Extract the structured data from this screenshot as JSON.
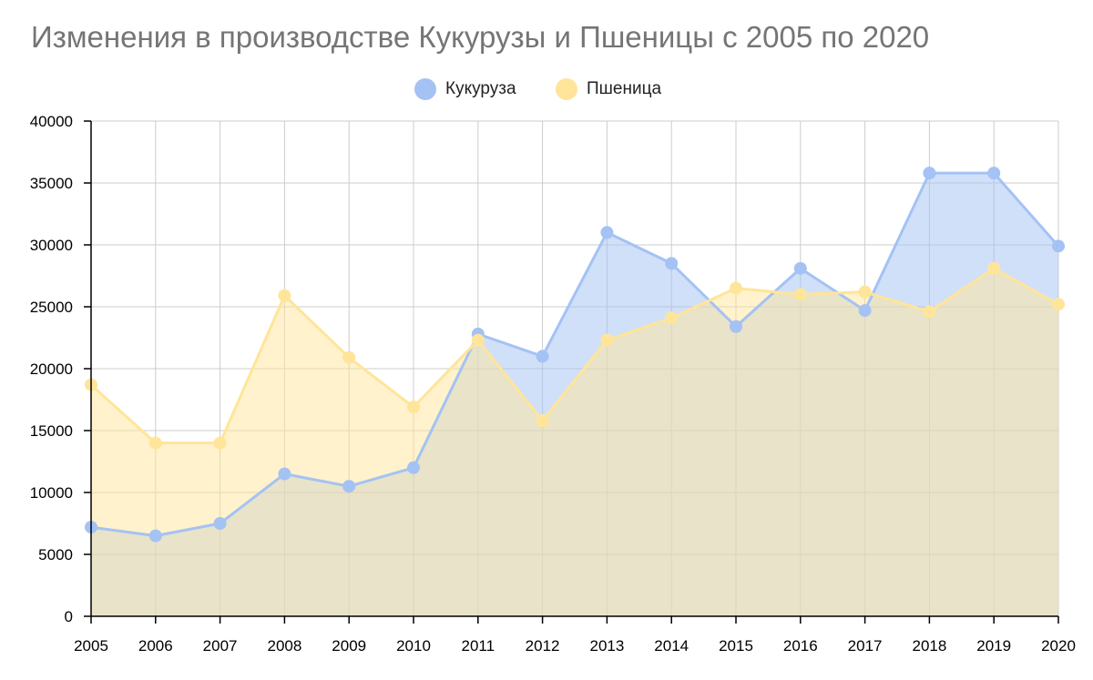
{
  "chart_data": {
    "type": "area",
    "title": "Изменения в производстве Кукурузы и Пшеницы с 2005 по 2020",
    "xlabel": "",
    "ylabel": "",
    "categories": [
      "2005",
      "2006",
      "2007",
      "2008",
      "2009",
      "2010",
      "2011",
      "2012",
      "2013",
      "2014",
      "2015",
      "2016",
      "2017",
      "2018",
      "2019",
      "2020"
    ],
    "series": [
      {
        "name": "Кукуруза",
        "color": "#a4c2f4",
        "values": [
          7200,
          6500,
          7500,
          11500,
          10500,
          12000,
          22800,
          21000,
          31000,
          28500,
          23400,
          28100,
          24700,
          35800,
          35800,
          29900
        ]
      },
      {
        "name": "Пшеница",
        "color": "#ffe599",
        "values": [
          18700,
          14000,
          14000,
          25900,
          20900,
          16900,
          22300,
          15800,
          22300,
          24100,
          26500,
          26000,
          26200,
          24600,
          28100,
          25200
        ]
      }
    ],
    "ylim": [
      0,
      40000
    ],
    "yticks": [
      "0",
      "5000",
      "10000",
      "15000",
      "20000",
      "25000",
      "30000",
      "35000",
      "40000"
    ],
    "legend_position": "top-center",
    "grid": true
  }
}
